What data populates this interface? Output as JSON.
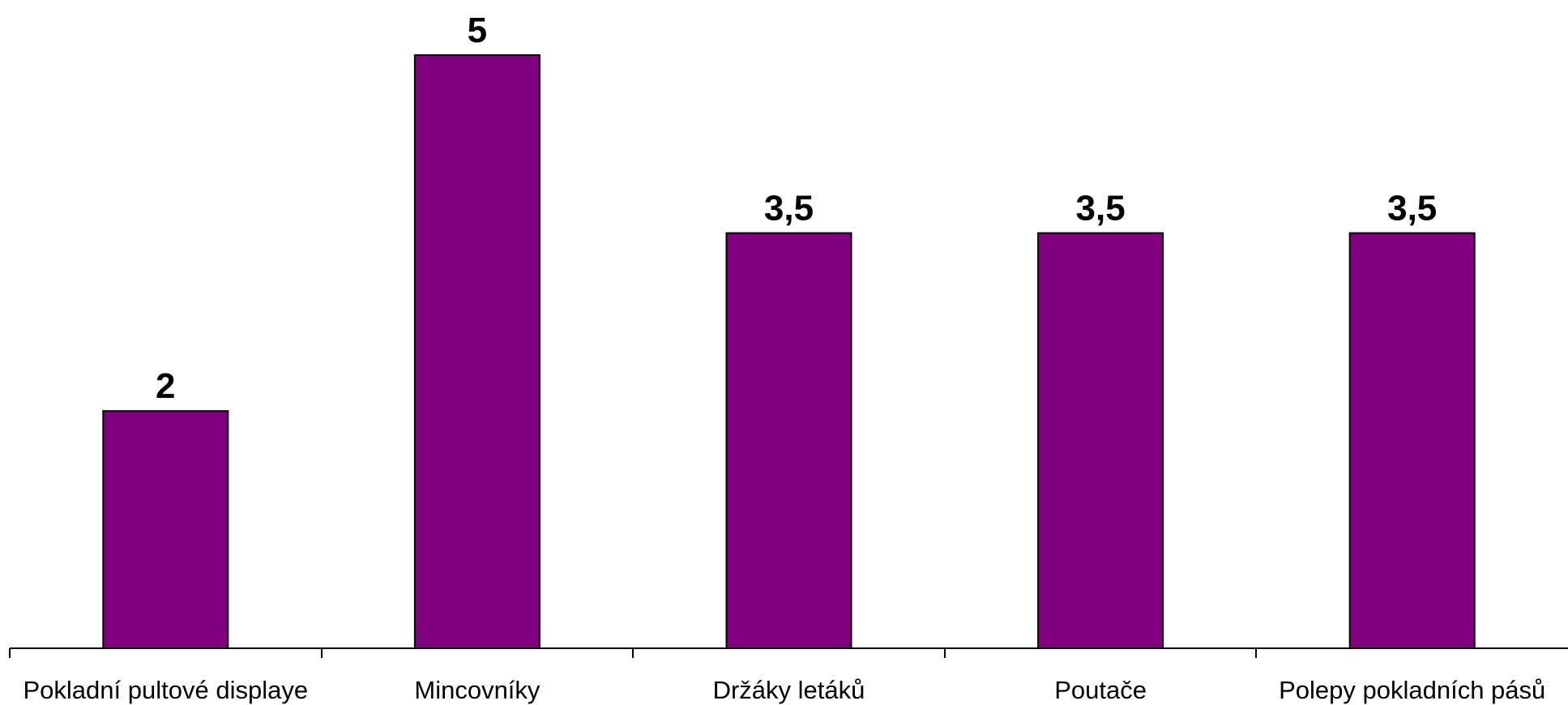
{
  "chart_data": {
    "type": "bar",
    "categories": [
      "Pokladní pultové displaye",
      "Mincovníky",
      "Držáky letáků",
      "Poutače",
      "Polepy pokladních pásů"
    ],
    "values": [
      2,
      5,
      3.5,
      3.5,
      3.5
    ],
    "data_labels": [
      "2",
      "5",
      "3,5",
      "3,5",
      "3,5"
    ],
    "title": "",
    "xlabel": "",
    "ylabel": "",
    "ylim": [
      0,
      5
    ],
    "grid": false,
    "legend": "none",
    "colors": {
      "bar_fill": "#800080",
      "bar_outline": "#000000",
      "axis": "#000000",
      "text": "#000000"
    }
  }
}
